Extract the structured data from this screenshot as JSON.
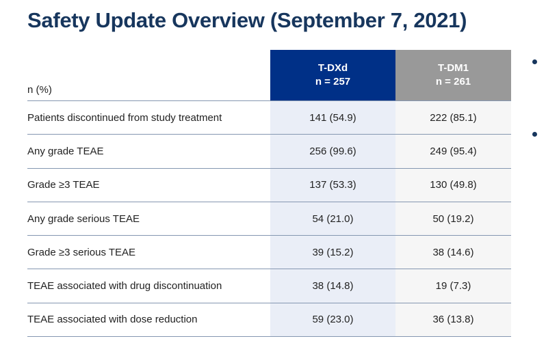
{
  "slide": {
    "title": "Safety Update Overview (September 7, 2021)"
  },
  "table": {
    "row_header_label": "n (%)",
    "columns": [
      {
        "name": "T-DXd",
        "n": "n = 257"
      },
      {
        "name": "T-DM1",
        "n": "n = 261"
      }
    ],
    "rows": [
      {
        "label": "Patients discontinued from study treatment",
        "tdxd": "141 (54.9)",
        "tdm1": "222 (85.1)"
      },
      {
        "label": "Any grade TEAE",
        "tdxd": "256 (99.6)",
        "tdm1": "249 (95.4)"
      },
      {
        "label": "Grade ≥3 TEAE",
        "tdxd": "137 (53.3)",
        "tdm1": "130 (49.8)"
      },
      {
        "label": "Any grade serious TEAE",
        "tdxd": "54 (21.0)",
        "tdm1": "50 (19.2)"
      },
      {
        "label": "Grade ≥3 serious TEAE",
        "tdxd": "39 (15.2)",
        "tdm1": "38 (14.6)"
      },
      {
        "label": "TEAE associated with drug discontinuation",
        "tdxd": "38 (14.8)",
        "tdm1": "19 (7.3)"
      },
      {
        "label": "TEAE associated with dose reduction",
        "tdxd": "59 (23.0)",
        "tdm1": "36 (13.8)"
      }
    ]
  },
  "colors": {
    "title_text": "#17365D",
    "tdxd_header_bg": "#003087",
    "tdm1_header_bg": "#999999",
    "tdxd_column_bg": "#EAEEF7",
    "tdm1_column_bg": "#F6F6F6",
    "row_divider": "#8496B0",
    "bullet": "#17365D"
  }
}
